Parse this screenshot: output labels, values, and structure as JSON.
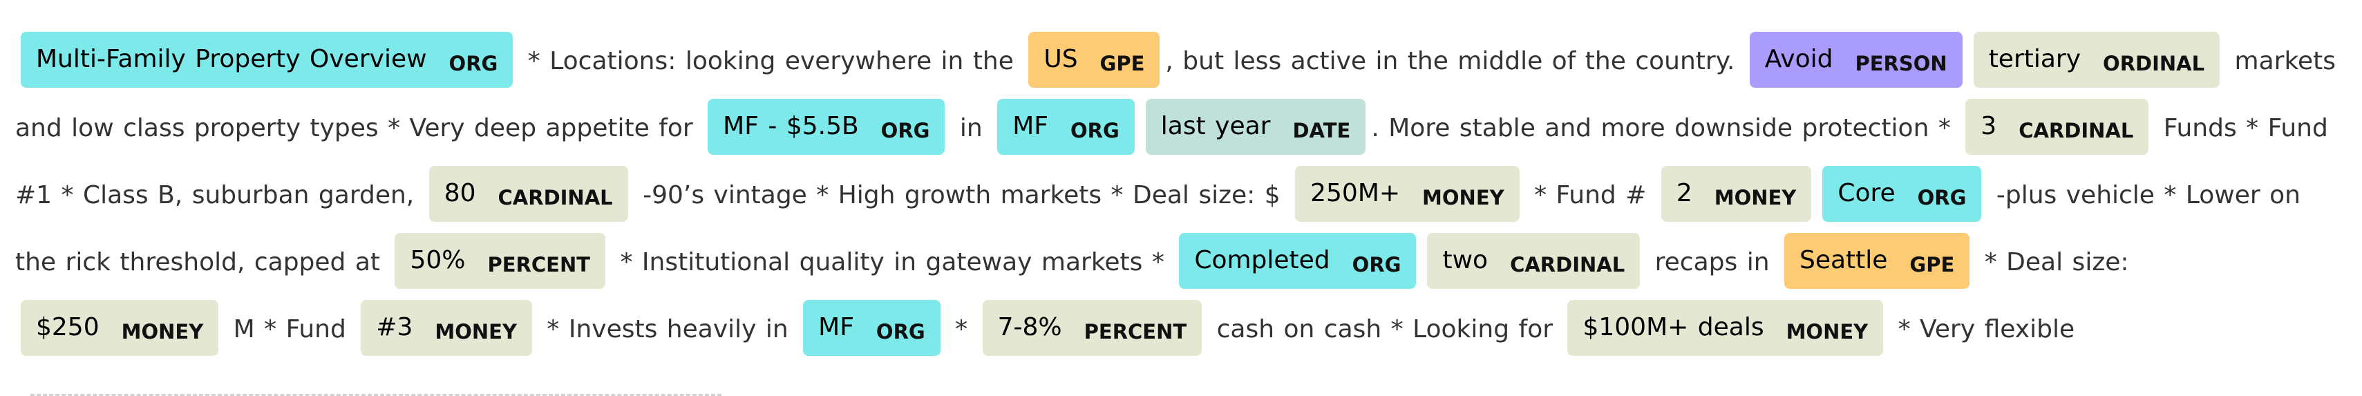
{
  "colors": {
    "ORG": "#7de9ea",
    "GPE": "#fdcb73",
    "PERSON": "#aa9cfc",
    "DATE": "#bfe1d9",
    "CARDINAL": "#e4e7d2",
    "ORDINAL": "#e4e7d2",
    "MONEY": "#e4e7d2",
    "PERCENT": "#e4e7d2"
  },
  "segments": [
    {
      "type": "ent",
      "text": "Multi-Family Property Overview",
      "label": "ORG"
    },
    {
      "type": "text",
      "text": " * Locations: looking everywhere in the "
    },
    {
      "type": "ent",
      "text": "US",
      "label": "GPE"
    },
    {
      "type": "text",
      "text": ", but less active in the middle of the country. "
    },
    {
      "type": "ent",
      "text": "Avoid",
      "label": "PERSON"
    },
    {
      "type": "ent",
      "text": "tertiary",
      "label": "ORDINAL"
    },
    {
      "type": "text",
      "text": " markets and low class property types * Very deep appetite for "
    },
    {
      "type": "ent",
      "text": "MF - $5.5B",
      "label": "ORG"
    },
    {
      "type": "text",
      "text": " in "
    },
    {
      "type": "ent",
      "text": "MF",
      "label": "ORG"
    },
    {
      "type": "ent",
      "text": "last year",
      "label": "DATE"
    },
    {
      "type": "text",
      "text": ". More stable and more downside protection * "
    },
    {
      "type": "ent",
      "text": "3",
      "label": "CARDINAL"
    },
    {
      "type": "text",
      "text": " Funds * Fund #1 * Class B, suburban garden, "
    },
    {
      "type": "ent",
      "text": "80",
      "label": "CARDINAL"
    },
    {
      "type": "text",
      "text": " -90’s vintage * High growth markets * Deal size: $ "
    },
    {
      "type": "ent",
      "text": "250M+",
      "label": "MONEY"
    },
    {
      "type": "text",
      "text": " * Fund # "
    },
    {
      "type": "ent",
      "text": "2",
      "label": "MONEY"
    },
    {
      "type": "ent",
      "text": "Core",
      "label": "ORG"
    },
    {
      "type": "text",
      "text": " -plus vehicle * Lower on the rick threshold, capped at "
    },
    {
      "type": "ent",
      "text": "50%",
      "label": "PERCENT"
    },
    {
      "type": "text",
      "text": " * Institutional quality in gateway markets * "
    },
    {
      "type": "ent",
      "text": "Completed",
      "label": "ORG"
    },
    {
      "type": "ent",
      "text": "two",
      "label": "CARDINAL"
    },
    {
      "type": "text",
      "text": " recaps in "
    },
    {
      "type": "ent",
      "text": "Seattle",
      "label": "GPE"
    },
    {
      "type": "text",
      "text": " * Deal size: "
    },
    {
      "type": "ent",
      "text": "$250",
      "label": "MONEY"
    },
    {
      "type": "text",
      "text": " M * Fund "
    },
    {
      "type": "ent",
      "text": "#3",
      "label": "MONEY"
    },
    {
      "type": "text",
      "text": " * Invests heavily in "
    },
    {
      "type": "ent",
      "text": "MF",
      "label": "ORG"
    },
    {
      "type": "text",
      "text": " * "
    },
    {
      "type": "ent",
      "text": "7-8%",
      "label": "PERCENT"
    },
    {
      "type": "text",
      "text": " cash on cash * Looking for "
    },
    {
      "type": "ent",
      "text": "$100M+ deals",
      "label": "MONEY"
    },
    {
      "type": "text",
      "text": " * Very flexible"
    }
  ]
}
